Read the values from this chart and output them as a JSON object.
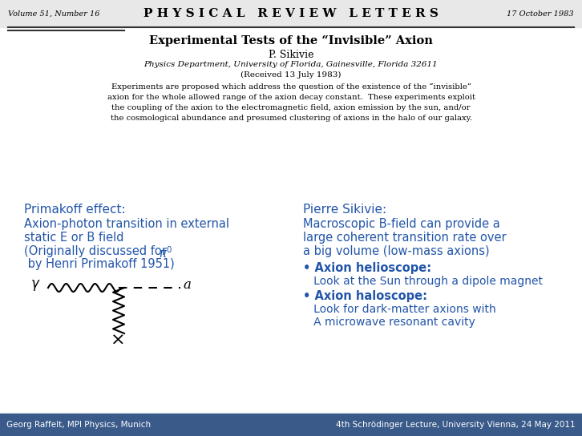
{
  "bg_color": "#ffffff",
  "header_bg": "#e8e8e8",
  "blue_color": "#2255aa",
  "black": "#000000",
  "footer_bg": "#3a5a8a",
  "footer_text_color": "#ffffff",
  "journal_header": "P H Y S I C A L   R E V I E W   L E T T E R S",
  "vol_text": "Volume 51, Number 16",
  "date_text": "17 October 1983",
  "paper_title": "Experimental Tests of the “Invisible” Axion",
  "author": "P. Sikivie",
  "affiliation": "Physics Department, University of Florida, Gainesville, Florida 32611",
  "received": "(Received 13 July 1983)",
  "abstract_lines": [
    "Experiments are proposed which address the question of the existence of the “invisible”",
    "axion for the whole allowed range of the axion decay constant.  These experiments exploit",
    "the coupling of the axion to the electromagnetic field, axion emission by the sun, and/or",
    "the cosmological abundance and presumed clustering of axions in the halo of our galaxy."
  ],
  "left_heading": "Primakoff effect:",
  "left_body_line1": "Axion-photon transition in external",
  "left_body_line2": "static E or B field",
  "left_body_line3_pre": "(Originally discussed for ",
  "left_body_line4": " by Henri Primakoff 1951)",
  "right_heading": "Pierre Sikivie:",
  "right_body_line1": "Macroscopic B-field can provide a",
  "right_body_line2": "large coherent transition rate over",
  "right_body_line3": "a big volume (low-mass axions)",
  "bullet1_head": "• Axion helioscope:",
  "bullet1_body": "   Look at the Sun through a dipole magnet",
  "bullet2_head": "• Axion haloscope:",
  "bullet2_body1": "   Look for dark-matter axions with",
  "bullet2_body2": "   A microwave resonant cavity",
  "footer_left": "Georg Raffelt, MPI Physics, Munich",
  "footer_right": "4th Schrödinger Lecture, University Vienna, 24 May 2011"
}
